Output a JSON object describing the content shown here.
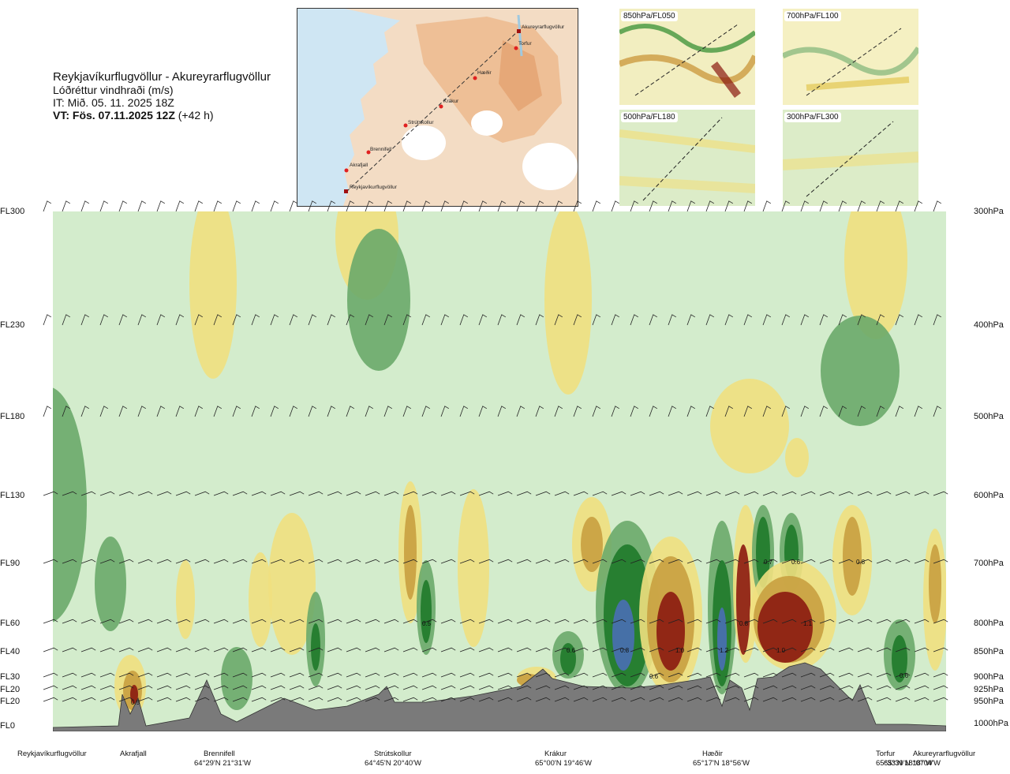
{
  "title": {
    "route": "Reykjavíkurflugvöllur - Akureyrarflugvöllur",
    "variable": "Lóðréttur vindhraði (m/s)",
    "it": "IT: Mið. 05. 11. 2025 18Z",
    "vt_bold": "VT: Fös. 07.11.2025 12Z",
    "vt_rest": " (+42 h)"
  },
  "map": {
    "points": [
      "Akureyrarflugvöllur",
      "Torfur",
      "Hæðir",
      "Krákur",
      "Strútskollur",
      "Brennifell",
      "Akrafjall",
      "Reykjavíkurflugvöllur"
    ]
  },
  "thumbnails": [
    "850hPa/FL050",
    "700hPa/FL100",
    "500hPa/FL180",
    "300hPa/FL300"
  ],
  "left_axis": [
    "FL300",
    "FL230",
    "FL180",
    "FL130",
    "FL90",
    "FL60",
    "FL40",
    "FL30",
    "FL20",
    "FL20",
    "FL0"
  ],
  "right_axis": [
    "300hPa",
    "400hPa",
    "500hPa",
    "600hPa",
    "700hPa",
    "800hPa",
    "850hPa",
    "900hPa",
    "925hPa",
    "950hPa",
    "1000hPa"
  ],
  "locations": [
    {
      "name": "Reykjavíkurflugvöllur",
      "coord": ""
    },
    {
      "name": "Akrafjall",
      "coord": ""
    },
    {
      "name": "Brennifell",
      "coord": "64°29'N 21°31'W"
    },
    {
      "name": "Strútskollur",
      "coord": "64°45'N 20°40'W"
    },
    {
      "name": "Krákur",
      "coord": "65°00'N 19°46'W"
    },
    {
      "name": "Hæðir",
      "coord": "65°17'N 18°56'W"
    },
    {
      "name": "Torfur",
      "coord": "65°33'N 18°07'W"
    },
    {
      "name": "Akureyrarflugvöllur",
      "coord": "65°39'N 18°04'W"
    }
  ],
  "chart_data": {
    "type": "heatmap",
    "title": "Lóðréttur vindhraði (m/s)",
    "xlabel": "",
    "ylabel": "",
    "contour_labels": [
      "0.5",
      "0.5",
      "0.6",
      "0.8",
      "1.0",
      "0.6",
      "1.2",
      "0.8",
      "1.0",
      "0.7",
      "0.6",
      "1.1",
      "0.6",
      "0.8"
    ],
    "colors": {
      "strong_down": "#8b1a10",
      "down": "#c8a040",
      "weak_down": "#f0e080",
      "neutral": "#ffffe0",
      "weak_up": "#cfe8c8",
      "up": "#6aaa6a",
      "strong_up": "#1f7a2a",
      "very_strong_up": "#4a6fb5",
      "terrain": "#7a7a7a"
    },
    "barb_levels_hPa": [
      300,
      400,
      500,
      600,
      700,
      800,
      850,
      900,
      925,
      950
    ]
  }
}
